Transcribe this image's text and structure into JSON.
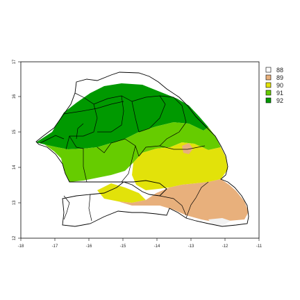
{
  "map": {
    "x_ticks": [
      "-18",
      "-17",
      "-16",
      "-15",
      "-14",
      "-13",
      "-12",
      "-11"
    ],
    "y_ticks": [
      "12",
      "13",
      "14",
      "15",
      "16",
      "17"
    ],
    "x_range": [
      -18,
      -11
    ],
    "y_range": [
      12,
      17
    ]
  },
  "legend": {
    "placement": "right",
    "items": [
      {
        "label": "88",
        "color": "#ffffff"
      },
      {
        "label": "89",
        "color": "#e8b07c"
      },
      {
        "label": "90",
        "color": "#e2e20a"
      },
      {
        "label": "91",
        "color": "#66cc00"
      },
      {
        "label": "92",
        "color": "#009900"
      }
    ]
  }
}
